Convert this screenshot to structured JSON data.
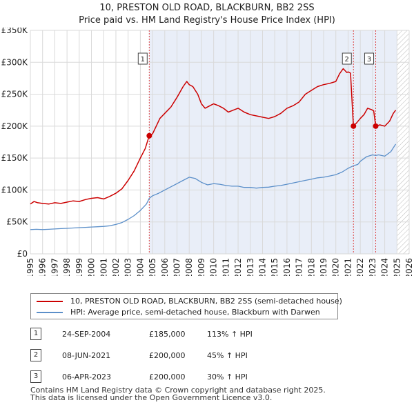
{
  "title_line1": "10, PRESTON OLD ROAD, BLACKBURN, BB2 2SS",
  "title_line2": "Price paid vs. HM Land Registry's House Price Index (HPI)",
  "chart_data": {
    "type": "line",
    "x_range": [
      1995,
      2026
    ],
    "y_range": [
      0,
      350000
    ],
    "y_ticks": [
      {
        "value": 0,
        "label": "£0"
      },
      {
        "value": 50000,
        "label": "£50K"
      },
      {
        "value": 100000,
        "label": "£100K"
      },
      {
        "value": 150000,
        "label": "£150K"
      },
      {
        "value": 200000,
        "label": "£200K"
      },
      {
        "value": 250000,
        "label": "£250K"
      },
      {
        "value": 300000,
        "label": "£300K"
      },
      {
        "value": 350000,
        "label": "£350K"
      }
    ],
    "x_ticks": [
      "1995",
      "1996",
      "1997",
      "1998",
      "1999",
      "2000",
      "2001",
      "2002",
      "2003",
      "2004",
      "2005",
      "2006",
      "2007",
      "2008",
      "2009",
      "2010",
      "2011",
      "2012",
      "2013",
      "2014",
      "2015",
      "2016",
      "2017",
      "2018",
      "2019",
      "2020",
      "2021",
      "2022",
      "2023",
      "2024",
      "2025",
      "2026"
    ],
    "hatch_from": 2025.0,
    "grid": true,
    "series": [
      {
        "name": "10, PRESTON OLD ROAD, BLACKBURN, BB2 2SS (semi-detached house)",
        "color": "#cc0000",
        "points": [
          [
            1995.0,
            78000
          ],
          [
            1995.3,
            82000
          ],
          [
            1995.6,
            80000
          ],
          [
            1996.0,
            79000
          ],
          [
            1996.5,
            78000
          ],
          [
            1997.0,
            80000
          ],
          [
            1997.5,
            79000
          ],
          [
            1998.0,
            81000
          ],
          [
            1998.5,
            83000
          ],
          [
            1999.0,
            82000
          ],
          [
            1999.5,
            85000
          ],
          [
            2000.0,
            87000
          ],
          [
            2000.5,
            88000
          ],
          [
            2001.0,
            86000
          ],
          [
            2001.5,
            90000
          ],
          [
            2002.0,
            95000
          ],
          [
            2002.5,
            102000
          ],
          [
            2003.0,
            115000
          ],
          [
            2003.5,
            130000
          ],
          [
            2004.0,
            150000
          ],
          [
            2004.4,
            165000
          ],
          [
            2004.73,
            185000
          ],
          [
            2005.0,
            188000
          ],
          [
            2005.3,
            200000
          ],
          [
            2005.6,
            212000
          ],
          [
            2006.0,
            220000
          ],
          [
            2006.5,
            230000
          ],
          [
            2007.0,
            245000
          ],
          [
            2007.5,
            262000
          ],
          [
            2007.8,
            270000
          ],
          [
            2008.0,
            265000
          ],
          [
            2008.3,
            262000
          ],
          [
            2008.7,
            250000
          ],
          [
            2009.0,
            235000
          ],
          [
            2009.3,
            228000
          ],
          [
            2009.7,
            232000
          ],
          [
            2010.0,
            235000
          ],
          [
            2010.4,
            232000
          ],
          [
            2010.8,
            228000
          ],
          [
            2011.2,
            222000
          ],
          [
            2011.6,
            225000
          ],
          [
            2012.0,
            228000
          ],
          [
            2012.5,
            222000
          ],
          [
            2013.0,
            218000
          ],
          [
            2013.5,
            216000
          ],
          [
            2014.0,
            214000
          ],
          [
            2014.5,
            212000
          ],
          [
            2015.0,
            215000
          ],
          [
            2015.5,
            220000
          ],
          [
            2016.0,
            228000
          ],
          [
            2016.5,
            232000
          ],
          [
            2017.0,
            238000
          ],
          [
            2017.5,
            250000
          ],
          [
            2018.0,
            256000
          ],
          [
            2018.5,
            262000
          ],
          [
            2019.0,
            265000
          ],
          [
            2019.5,
            267000
          ],
          [
            2020.0,
            270000
          ],
          [
            2020.3,
            282000
          ],
          [
            2020.6,
            290000
          ],
          [
            2020.9,
            284000
          ],
          [
            2021.0,
            285000
          ],
          [
            2021.2,
            283000
          ],
          [
            2021.44,
            200000
          ],
          [
            2021.7,
            205000
          ],
          [
            2022.0,
            212000
          ],
          [
            2022.3,
            218000
          ],
          [
            2022.6,
            228000
          ],
          [
            2022.9,
            226000
          ],
          [
            2023.1,
            224000
          ],
          [
            2023.26,
            200000
          ],
          [
            2023.6,
            202000
          ],
          [
            2024.0,
            200000
          ],
          [
            2024.4,
            208000
          ],
          [
            2024.7,
            220000
          ],
          [
            2024.9,
            225000
          ]
        ]
      },
      {
        "name": "HPI: Average price, semi-detached house, Blackburn with Darwen",
        "color": "#5b8fc9",
        "points": [
          [
            1995.0,
            38000
          ],
          [
            1995.5,
            38500
          ],
          [
            1996.0,
            38000
          ],
          [
            1996.5,
            38500
          ],
          [
            1997.0,
            39000
          ],
          [
            1997.5,
            39500
          ],
          [
            1998.0,
            40000
          ],
          [
            1998.5,
            40500
          ],
          [
            1999.0,
            41000
          ],
          [
            1999.5,
            41500
          ],
          [
            2000.0,
            42000
          ],
          [
            2000.5,
            42500
          ],
          [
            2001.0,
            43000
          ],
          [
            2001.5,
            44000
          ],
          [
            2002.0,
            46000
          ],
          [
            2002.5,
            49000
          ],
          [
            2003.0,
            54000
          ],
          [
            2003.5,
            60000
          ],
          [
            2004.0,
            68000
          ],
          [
            2004.5,
            78000
          ],
          [
            2004.73,
            87000
          ],
          [
            2005.0,
            91000
          ],
          [
            2005.5,
            95000
          ],
          [
            2006.0,
            100000
          ],
          [
            2006.5,
            105000
          ],
          [
            2007.0,
            110000
          ],
          [
            2007.5,
            115000
          ],
          [
            2008.0,
            120000
          ],
          [
            2008.5,
            118000
          ],
          [
            2009.0,
            112000
          ],
          [
            2009.5,
            108000
          ],
          [
            2010.0,
            110000
          ],
          [
            2010.5,
            109000
          ],
          [
            2011.0,
            107000
          ],
          [
            2011.5,
            106000
          ],
          [
            2012.0,
            106000
          ],
          [
            2012.5,
            104000
          ],
          [
            2013.0,
            104000
          ],
          [
            2013.5,
            103000
          ],
          [
            2014.0,
            104000
          ],
          [
            2014.5,
            104500
          ],
          [
            2015.0,
            106000
          ],
          [
            2015.5,
            107000
          ],
          [
            2016.0,
            109000
          ],
          [
            2016.5,
            111000
          ],
          [
            2017.0,
            113000
          ],
          [
            2017.5,
            115000
          ],
          [
            2018.0,
            117000
          ],
          [
            2018.5,
            119000
          ],
          [
            2019.0,
            120000
          ],
          [
            2019.5,
            122000
          ],
          [
            2020.0,
            124000
          ],
          [
            2020.5,
            128000
          ],
          [
            2021.0,
            134000
          ],
          [
            2021.44,
            138000
          ],
          [
            2021.8,
            140000
          ],
          [
            2022.0,
            145000
          ],
          [
            2022.5,
            152000
          ],
          [
            2023.0,
            155000
          ],
          [
            2023.26,
            154000
          ],
          [
            2023.5,
            155000
          ],
          [
            2024.0,
            153000
          ],
          [
            2024.5,
            160000
          ],
          [
            2024.9,
            172000
          ]
        ]
      }
    ],
    "sales": [
      {
        "marker": "1",
        "x": 2004.73,
        "y": 185000
      },
      {
        "marker": "2",
        "x": 2021.44,
        "y": 200000
      },
      {
        "marker": "3",
        "x": 2023.26,
        "y": 200000
      }
    ]
  },
  "legend": [
    {
      "label": "10, PRESTON OLD ROAD, BLACKBURN, BB2 2SS (semi-detached house)",
      "color": "#cc0000"
    },
    {
      "label": "HPI: Average price, semi-detached house, Blackburn with Darwen",
      "color": "#5b8fc9"
    }
  ],
  "transactions": [
    {
      "marker": "1",
      "date": "24-SEP-2004",
      "price": "£185,000",
      "hpi": "113% ↑ HPI"
    },
    {
      "marker": "2",
      "date": "08-JUN-2021",
      "price": "£200,000",
      "hpi": "45% ↑ HPI"
    },
    {
      "marker": "3",
      "date": "06-APR-2023",
      "price": "£200,000",
      "hpi": "30% ↑ HPI"
    }
  ],
  "footer_line1": "Contains HM Land Registry data © Crown copyright and database right 2025.",
  "footer_line2": "This data is licensed under the Open Government Licence v3.0."
}
